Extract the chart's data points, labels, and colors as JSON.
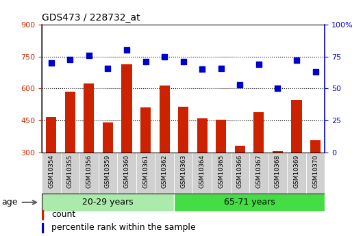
{
  "title": "GDS473 / 228732_at",
  "samples": [
    "GSM10354",
    "GSM10355",
    "GSM10356",
    "GSM10359",
    "GSM10360",
    "GSM10361",
    "GSM10362",
    "GSM10363",
    "GSM10364",
    "GSM10365",
    "GSM10366",
    "GSM10367",
    "GSM10368",
    "GSM10369",
    "GSM10370"
  ],
  "counts": [
    465,
    585,
    625,
    440,
    715,
    510,
    615,
    515,
    458,
    452,
    330,
    490,
    305,
    545,
    355
  ],
  "percentiles": [
    70,
    73,
    76,
    66,
    80,
    71,
    75,
    71,
    65,
    66,
    53,
    69,
    50,
    72,
    63
  ],
  "group1_label": "20-29 years",
  "group2_label": "65-71 years",
  "group1_count": 7,
  "group2_count": 8,
  "ylim_left": [
    300,
    900
  ],
  "ylim_right": [
    0,
    100
  ],
  "yticks_left": [
    300,
    450,
    600,
    750,
    900
  ],
  "yticks_right": [
    0,
    25,
    50,
    75,
    100
  ],
  "bar_color": "#cc2200",
  "dot_color": "#0000cc",
  "bar_width": 0.55,
  "dot_size": 40,
  "legend_count_label": "count",
  "legend_percentile_label": "percentile rank within the sample",
  "bg_plot": "#ffffff",
  "bg_label_area": "#d0d0d0",
  "bg_group1": "#aaeaaa",
  "bg_group2": "#44dd44",
  "age_label": "age"
}
